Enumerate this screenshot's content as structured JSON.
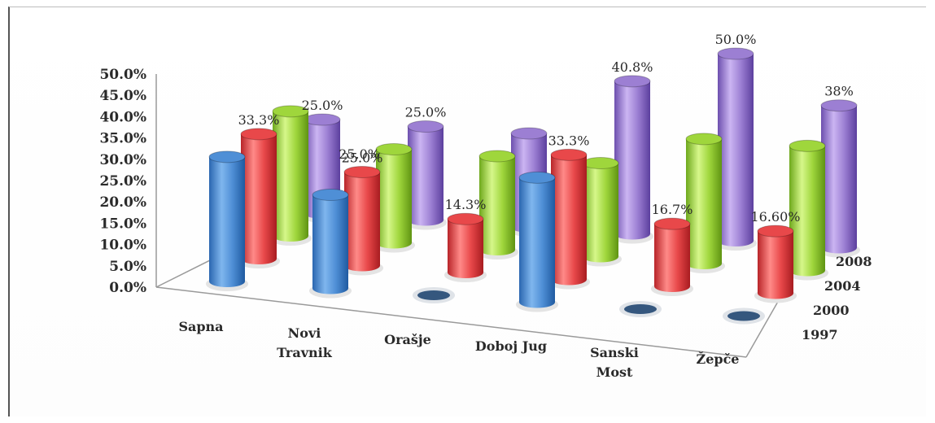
{
  "chart_data": {
    "type": "bar",
    "subtype": "3d-cylinder",
    "title": "",
    "categories": [
      "Sapna",
      "Novi Travnik",
      "Orašje",
      "Doboj Jug",
      "Sanski Most",
      "Žepče"
    ],
    "y_ticks": [
      "0.0%",
      "5.0%",
      "10.0%",
      "15.0%",
      "20.0%",
      "25.0%",
      "30.0%",
      "35.0%",
      "40.0%",
      "45.0%",
      "50.0%"
    ],
    "ylim": [
      0,
      50
    ],
    "grid": false,
    "series_axis_labels": [
      "1997",
      "2000",
      "2004",
      "2008"
    ],
    "series": [
      {
        "label": "1997",
        "color": "#4f8fd6",
        "values": [
          33.3,
          25.0,
          0,
          33.3,
          0,
          0
        ],
        "labels": [
          "",
          "",
          "",
          "",
          "",
          ""
        ]
      },
      {
        "label": "2000",
        "color": "#e8484a",
        "values": [
          33.3,
          25.0,
          14.3,
          33.3,
          16.7,
          16.6
        ],
        "labels": [
          "33.3%",
          "25.0%",
          "14.3%",
          "33.3%",
          "16.7%",
          "16.60%"
        ]
      },
      {
        "label": "2004",
        "color": "#9fd63c",
        "values": [
          33.3,
          25.0,
          25.0,
          25.0,
          33.3,
          33.3
        ],
        "labels": [
          "",
          "",
          "",
          "",
          "",
          ""
        ]
      },
      {
        "label": "2008",
        "color": "#9c7fd3",
        "values": [
          25.0,
          25.0,
          25.0,
          40.8,
          50.0,
          38.0
        ],
        "labels": [
          "25.0%",
          "25.0%",
          "",
          "40.8%",
          "50.0%",
          "38%"
        ]
      }
    ],
    "extra_labels": [
      "25.0%"
    ]
  }
}
